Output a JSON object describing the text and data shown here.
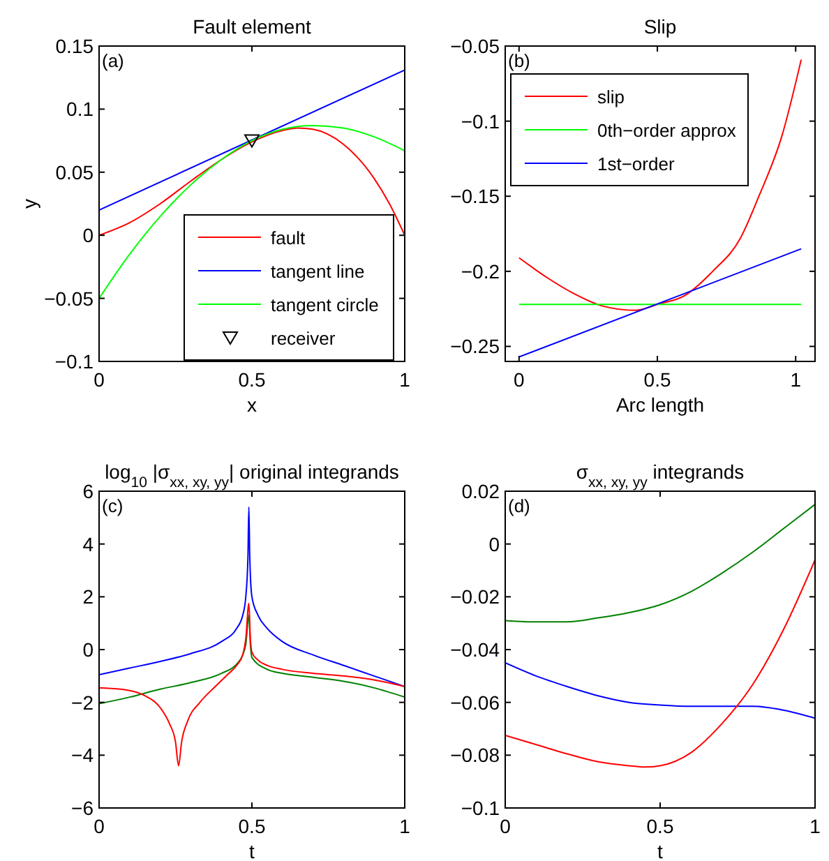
{
  "chart_data": [
    {
      "type": "line",
      "title": "Fault element",
      "xlabel": "x",
      "ylabel": "y",
      "annotations": [
        "(a)"
      ],
      "xlim": [
        0,
        1
      ],
      "ylim": [
        -0.1,
        0.15
      ],
      "xticks": [
        0,
        0.5,
        1
      ],
      "yticks": [
        -0.1,
        -0.05,
        0,
        0.05,
        0.1,
        0.15
      ],
      "legend": "bottom right",
      "grid": false,
      "series": [
        {
          "name": "fault",
          "color": "#ff0000",
          "x": [
            0,
            0.1,
            0.2,
            0.3,
            0.4,
            0.5,
            0.6,
            0.65,
            0.7,
            0.8,
            0.9,
            0.95,
            1.0
          ],
          "values": [
            0,
            0.01,
            0.025,
            0.043,
            0.06,
            0.074,
            0.083,
            0.085,
            0.084,
            0.072,
            0.045,
            0.025,
            0
          ]
        },
        {
          "name": "tangent line",
          "color": "#0000ff",
          "x": [
            0,
            1
          ],
          "values": [
            0.02,
            0.131
          ]
        },
        {
          "name": "tangent circle",
          "color": "#00ff00",
          "x": [
            0,
            0.1,
            0.2,
            0.3,
            0.4,
            0.5,
            0.6,
            0.7,
            0.8,
            0.9,
            1.0
          ],
          "values": [
            -0.05,
            -0.015,
            0.015,
            0.04,
            0.06,
            0.075,
            0.084,
            0.087,
            0.085,
            0.078,
            0.067
          ]
        },
        {
          "name": "receiver",
          "type": "scatter",
          "marker": "triangle",
          "color": "#000000",
          "x": [
            0.5
          ],
          "values": [
            0.075
          ]
        }
      ]
    },
    {
      "type": "line",
      "title": "Slip",
      "xlabel": "Arc length",
      "annotations": [
        "(b)"
      ],
      "xlim": [
        -0.05,
        1.07
      ],
      "ylim": [
        -0.26,
        -0.05
      ],
      "xticks": [
        0,
        0.5,
        1
      ],
      "yticks": [
        -0.25,
        -0.2,
        -0.15,
        -0.1,
        -0.05
      ],
      "legend": "top left",
      "grid": false,
      "series": [
        {
          "name": "slip",
          "color": "#ff0000",
          "x": [
            0,
            0.1,
            0.2,
            0.3,
            0.42,
            0.5,
            0.6,
            0.7,
            0.8,
            0.867,
            0.95,
            1.02
          ],
          "values": [
            -0.191,
            -0.204,
            -0.215,
            -0.223,
            -0.226,
            -0.222,
            -0.216,
            -0.2,
            -0.178,
            -0.15,
            -0.11,
            -0.059
          ]
        },
        {
          "name": "0th−order approx",
          "color": "#00ff00",
          "x": [
            0,
            1.02
          ],
          "values": [
            -0.222,
            -0.222
          ]
        },
        {
          "name": "1st−order",
          "color": "#0000ff",
          "x": [
            0,
            1.02
          ],
          "values": [
            -0.257,
            -0.185
          ]
        }
      ]
    },
    {
      "type": "line",
      "title": "log$_{10}$ |σ$_{xx, xy, yy}$| original integrands",
      "xlabel": "t",
      "annotations": [
        "(c)"
      ],
      "xlim": [
        0,
        1
      ],
      "ylim": [
        -6,
        6
      ],
      "xticks": [
        0,
        0.5,
        1
      ],
      "yticks": [
        -6,
        -4,
        -2,
        0,
        2,
        4,
        6
      ],
      "grid": false,
      "series": [
        {
          "color": "#0000ff",
          "x": [
            0,
            0.1,
            0.2,
            0.3,
            0.4,
            0.45,
            0.47,
            0.48,
            0.487,
            0.49,
            0.493,
            0.5,
            0.52,
            0.55,
            0.6,
            0.7,
            0.8,
            0.9,
            1.0
          ],
          "values": [
            -0.95,
            -0.7,
            -0.45,
            -0.15,
            0.3,
            0.8,
            1.3,
            2.0,
            3.5,
            5.4,
            3.5,
            2.0,
            1.3,
            0.8,
            0.3,
            -0.2,
            -0.6,
            -1.0,
            -1.4
          ]
        },
        {
          "color": "#008000",
          "x": [
            0,
            0.1,
            0.2,
            0.3,
            0.4,
            0.45,
            0.47,
            0.48,
            0.49,
            0.495,
            0.5,
            0.55,
            0.6,
            0.7,
            0.8,
            0.9,
            1.0
          ],
          "values": [
            -2.05,
            -1.8,
            -1.5,
            -1.25,
            -0.9,
            -0.55,
            -0.2,
            0.2,
            1.3,
            0.2,
            -0.3,
            -0.75,
            -0.9,
            -1.05,
            -1.2,
            -1.45,
            -1.8
          ]
        },
        {
          "color": "#ff0000",
          "x": [
            0,
            0.1,
            0.15,
            0.2,
            0.23,
            0.25,
            0.26,
            0.27,
            0.29,
            0.33,
            0.38,
            0.42,
            0.45,
            0.47,
            0.48,
            0.49,
            0.495,
            0.5,
            0.52,
            0.55,
            0.6,
            0.7,
            0.8,
            0.9,
            1.0
          ],
          "values": [
            -1.45,
            -1.55,
            -1.75,
            -2.2,
            -2.8,
            -3.5,
            -4.4,
            -3.5,
            -2.7,
            -2.0,
            -1.4,
            -0.95,
            -0.6,
            -0.2,
            0.4,
            1.75,
            0.4,
            -0.1,
            -0.4,
            -0.6,
            -0.75,
            -0.9,
            -1.0,
            -1.15,
            -1.4
          ]
        }
      ]
    },
    {
      "type": "line",
      "title": "σ$_{xx, xy, yy}$ integrands",
      "xlabel": "t",
      "annotations": [
        "(d)"
      ],
      "xlim": [
        0,
        1
      ],
      "ylim": [
        -0.1,
        0.02
      ],
      "xticks": [
        0,
        0.5,
        1
      ],
      "yticks": [
        -0.1,
        -0.08,
        -0.06,
        -0.04,
        -0.02,
        0,
        0.02
      ],
      "grid": false,
      "series": [
        {
          "color": "#008000",
          "x": [
            0,
            0.1,
            0.2,
            0.3,
            0.4,
            0.5,
            0.6,
            0.7,
            0.8,
            0.9,
            1.0
          ],
          "values": [
            -0.029,
            -0.0295,
            -0.0295,
            -0.028,
            -0.026,
            -0.023,
            -0.018,
            -0.011,
            -0.003,
            0.006,
            0.015
          ]
        },
        {
          "color": "#0000ff",
          "x": [
            0,
            0.1,
            0.2,
            0.3,
            0.4,
            0.5,
            0.6,
            0.7,
            0.8,
            0.9,
            1.0
          ],
          "values": [
            -0.045,
            -0.05,
            -0.054,
            -0.0575,
            -0.06,
            -0.061,
            -0.0615,
            -0.0615,
            -0.0615,
            -0.063,
            -0.066
          ]
        },
        {
          "color": "#ff0000",
          "x": [
            0,
            0.1,
            0.2,
            0.3,
            0.4,
            0.45,
            0.5,
            0.6,
            0.7,
            0.8,
            0.9,
            1.0
          ],
          "values": [
            -0.0725,
            -0.076,
            -0.0795,
            -0.0825,
            -0.084,
            -0.0845,
            -0.084,
            -0.079,
            -0.068,
            -0.053,
            -0.032,
            -0.006
          ]
        }
      ]
    }
  ]
}
